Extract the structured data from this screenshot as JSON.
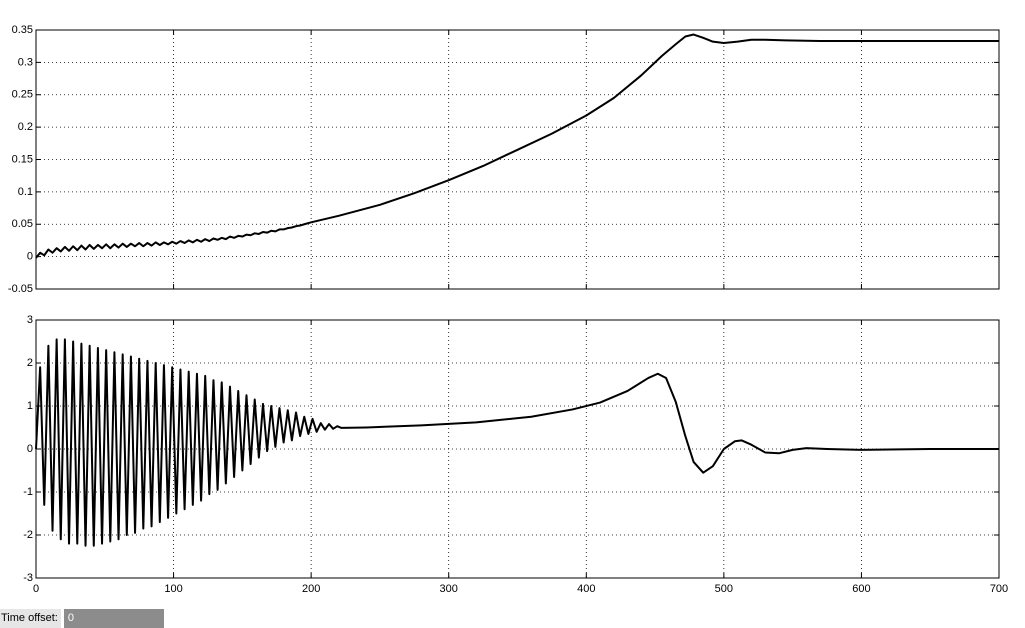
{
  "chart_data": [
    {
      "type": "line",
      "xlim": [
        0,
        700
      ],
      "xticks": [
        0,
        100,
        200,
        300,
        400,
        500,
        600,
        700
      ],
      "ylim": [
        -0.05,
        0.35
      ],
      "yticks": [
        -0.05,
        0,
        0.05,
        0.1,
        0.15,
        0.2,
        0.25,
        0.3,
        0.35
      ],
      "grid": true,
      "x": [
        0,
        3,
        6,
        9,
        12,
        15,
        18,
        21,
        24,
        27,
        30,
        33,
        36,
        39,
        42,
        45,
        48,
        51,
        54,
        57,
        60,
        63,
        66,
        69,
        72,
        75,
        78,
        81,
        84,
        87,
        90,
        93,
        96,
        99,
        102,
        105,
        108,
        111,
        114,
        117,
        120,
        123,
        126,
        129,
        132,
        135,
        138,
        141,
        144,
        147,
        150,
        153,
        156,
        159,
        162,
        165,
        168,
        171,
        174,
        177,
        180,
        183,
        186,
        189,
        192,
        195,
        200,
        220,
        250,
        275,
        300,
        325,
        350,
        375,
        400,
        420,
        440,
        455,
        465,
        472,
        478,
        485,
        492,
        500,
        510,
        520,
        530,
        545,
        570,
        600,
        650,
        700
      ],
      "series": [
        {
          "color": "#000000",
          "values": [
            -0.002,
            0.006,
            0.002,
            0.011,
            0.006,
            0.013,
            0.008,
            0.015,
            0.009,
            0.016,
            0.01,
            0.017,
            0.011,
            0.018,
            0.012,
            0.018,
            0.013,
            0.019,
            0.013,
            0.019,
            0.014,
            0.02,
            0.015,
            0.02,
            0.016,
            0.021,
            0.016,
            0.021,
            0.017,
            0.022,
            0.018,
            0.022,
            0.019,
            0.023,
            0.02,
            0.024,
            0.021,
            0.025,
            0.022,
            0.026,
            0.023,
            0.027,
            0.024,
            0.028,
            0.026,
            0.029,
            0.027,
            0.031,
            0.029,
            0.032,
            0.031,
            0.034,
            0.033,
            0.036,
            0.035,
            0.038,
            0.037,
            0.04,
            0.039,
            0.042,
            0.042,
            0.044,
            0.045,
            0.047,
            0.048,
            0.05,
            0.053,
            0.063,
            0.08,
            0.098,
            0.118,
            0.14,
            0.165,
            0.19,
            0.218,
            0.245,
            0.28,
            0.31,
            0.328,
            0.34,
            0.343,
            0.338,
            0.332,
            0.33,
            0.332,
            0.335,
            0.335,
            0.334,
            0.333,
            0.333,
            0.333,
            0.333
          ]
        }
      ]
    },
    {
      "type": "line",
      "xlim": [
        0,
        700
      ],
      "xticks": [
        0,
        100,
        200,
        300,
        400,
        500,
        600,
        700
      ],
      "ylim": [
        -3,
        3
      ],
      "yticks": [
        -3,
        -2,
        -1,
        0,
        1,
        2,
        3
      ],
      "grid": true,
      "x": [
        0,
        3,
        6,
        9,
        12,
        15,
        18,
        21,
        24,
        27,
        30,
        33,
        36,
        39,
        42,
        45,
        48,
        51,
        54,
        57,
        60,
        63,
        66,
        69,
        72,
        75,
        78,
        81,
        84,
        87,
        90,
        93,
        96,
        99,
        102,
        105,
        108,
        111,
        114,
        117,
        120,
        123,
        126,
        129,
        132,
        135,
        138,
        141,
        144,
        147,
        150,
        153,
        156,
        159,
        162,
        165,
        168,
        171,
        174,
        177,
        180,
        183,
        186,
        189,
        192,
        195,
        198,
        201,
        204,
        207,
        210,
        213,
        216,
        219,
        222,
        240,
        280,
        320,
        360,
        390,
        410,
        430,
        445,
        452,
        458,
        465,
        472,
        478,
        485,
        492,
        500,
        508,
        513,
        520,
        530,
        540,
        550,
        560,
        575,
        600,
        650,
        700
      ],
      "series": [
        {
          "color": "#000000",
          "values": [
            0,
            1.9,
            -1.3,
            2.4,
            -1.9,
            2.55,
            -2.1,
            2.55,
            -2.2,
            2.5,
            -2.2,
            2.45,
            -2.25,
            2.4,
            -2.25,
            2.35,
            -2.2,
            2.3,
            -2.15,
            2.25,
            -2.1,
            2.2,
            -2.0,
            2.15,
            -1.95,
            2.1,
            -1.85,
            2.05,
            -1.8,
            2.0,
            -1.7,
            1.95,
            -1.6,
            1.9,
            -1.5,
            1.85,
            -1.4,
            1.8,
            -1.3,
            1.75,
            -1.2,
            1.7,
            -1.05,
            1.6,
            -0.95,
            1.55,
            -0.8,
            1.45,
            -0.65,
            1.35,
            -0.5,
            1.25,
            -0.35,
            1.15,
            -0.2,
            1.05,
            -0.05,
            1.0,
            0.05,
            0.95,
            0.15,
            0.9,
            0.2,
            0.85,
            0.3,
            0.75,
            0.35,
            0.7,
            0.4,
            0.6,
            0.45,
            0.58,
            0.47,
            0.53,
            0.49,
            0.5,
            0.55,
            0.62,
            0.75,
            0.92,
            1.08,
            1.35,
            1.65,
            1.75,
            1.65,
            1.1,
            0.3,
            -0.3,
            -0.55,
            -0.4,
            0.0,
            0.18,
            0.2,
            0.1,
            -0.08,
            -0.1,
            -0.02,
            0.02,
            0.0,
            -0.02,
            0.0,
            0.0
          ]
        }
      ]
    }
  ],
  "footer": {
    "label": "Time offset:",
    "value": 0
  }
}
